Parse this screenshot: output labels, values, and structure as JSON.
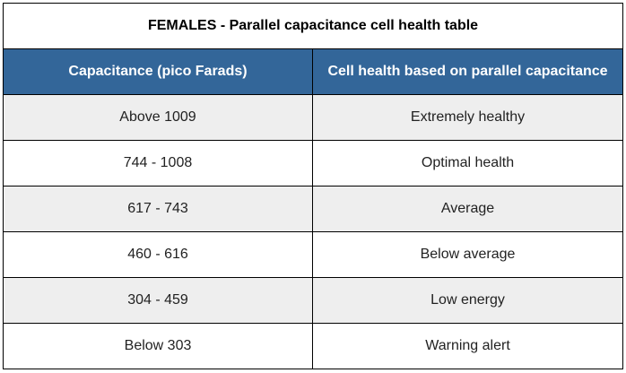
{
  "table": {
    "title": "FEMALES - Parallel capacitance cell health table",
    "headers": [
      "Capacitance (pico Farads)",
      "Cell health based on parallel capacitance"
    ],
    "rows": [
      {
        "capacitance": "Above 1009",
        "health": "Extremely healthy"
      },
      {
        "capacitance": "744 - 1008",
        "health": "Optimal health"
      },
      {
        "capacitance": "617 - 743",
        "health": "Average"
      },
      {
        "capacitance": "460 - 616",
        "health": "Below average"
      },
      {
        "capacitance": "304 - 459",
        "health": "Low energy"
      },
      {
        "capacitance": "Below 303",
        "health": "Warning alert"
      }
    ],
    "colors": {
      "header_background": "#336699",
      "header_text": "#ffffff",
      "shaded_row": "#eeeeee",
      "plain_row": "#ffffff"
    }
  }
}
